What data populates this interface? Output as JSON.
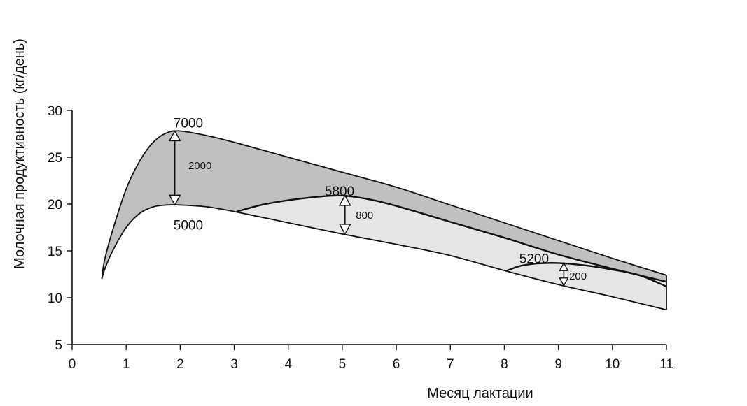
{
  "chart_data": {
    "type": "line",
    "title": "",
    "xlabel": "Месяц лактации",
    "ylabel": "Молочная продуктивность (кг/день)",
    "xlim": [
      0,
      11
    ],
    "ylim": [
      5,
      30
    ],
    "x_ticks": [
      "0",
      "1",
      "2",
      "3",
      "4",
      "5",
      "6",
      "7",
      "8",
      "9",
      "10",
      "11"
    ],
    "y_ticks": [
      "5",
      "10",
      "15",
      "20",
      "25",
      "30"
    ],
    "grid": false,
    "legend": "none",
    "colors": {
      "line": "#111111",
      "fill_between": "#b9b9b9",
      "fill_light": "#e6e6e6",
      "background": "#ffffff"
    },
    "series": [
      {
        "name": "7000",
        "points": [
          [
            0.55,
            12.0
          ],
          [
            0.6,
            14.0
          ],
          [
            0.75,
            17.2
          ],
          [
            1.0,
            21.6
          ],
          [
            1.25,
            24.6
          ],
          [
            1.5,
            26.6
          ],
          [
            1.75,
            27.6
          ],
          [
            2.0,
            27.8
          ],
          [
            2.5,
            27.3
          ],
          [
            3.0,
            26.6
          ],
          [
            4.0,
            25.0
          ],
          [
            5.0,
            23.4
          ],
          [
            6.0,
            21.8
          ],
          [
            7.0,
            19.9
          ],
          [
            8.0,
            18.0
          ],
          [
            9.0,
            16.1
          ],
          [
            10.0,
            14.2
          ],
          [
            11.0,
            12.4
          ]
        ]
      },
      {
        "name": "5000",
        "points": [
          [
            0.55,
            12.0
          ],
          [
            0.6,
            13.0
          ],
          [
            0.75,
            15.0
          ],
          [
            1.0,
            17.5
          ],
          [
            1.25,
            19.0
          ],
          [
            1.5,
            19.7
          ],
          [
            1.75,
            19.9
          ],
          [
            2.0,
            19.9
          ],
          [
            2.5,
            19.7
          ],
          [
            3.0,
            19.2
          ],
          [
            4.0,
            18.0
          ],
          [
            5.0,
            16.8
          ],
          [
            6.0,
            15.7
          ],
          [
            7.0,
            14.5
          ],
          [
            8.0,
            12.9
          ],
          [
            9.0,
            11.4
          ],
          [
            10.0,
            10.1
          ],
          [
            11.0,
            8.7
          ]
        ]
      },
      {
        "name": "5800",
        "points": [
          [
            3.05,
            19.2
          ],
          [
            3.5,
            19.9
          ],
          [
            4.0,
            20.4
          ],
          [
            4.5,
            20.75
          ],
          [
            5.0,
            20.9
          ],
          [
            5.5,
            20.5
          ],
          [
            6.0,
            19.8
          ],
          [
            7.0,
            18.1
          ],
          [
            8.0,
            16.4
          ],
          [
            9.0,
            14.6
          ],
          [
            10.0,
            13.1
          ],
          [
            11.0,
            11.7
          ]
        ]
      },
      {
        "name": "5200",
        "points": [
          [
            8.05,
            12.9
          ],
          [
            8.3,
            13.4
          ],
          [
            8.6,
            13.65
          ],
          [
            9.0,
            13.7
          ],
          [
            9.5,
            13.45
          ],
          [
            10.0,
            13.0
          ],
          [
            10.5,
            12.4
          ],
          [
            11.0,
            11.2
          ]
        ]
      }
    ],
    "annotations": [
      {
        "label": "7000",
        "x": 2.15,
        "y": 28.7,
        "size": "big"
      },
      {
        "label": "5000",
        "x": 2.15,
        "y": 17.8,
        "size": "big"
      },
      {
        "label": "5800",
        "x": 4.95,
        "y": 21.4,
        "size": "big"
      },
      {
        "label": "5200",
        "x": 8.55,
        "y": 14.2,
        "size": "big"
      },
      {
        "label": "2000",
        "x": 2.15,
        "y": 24.1,
        "size": "small"
      },
      {
        "label": "800",
        "x": 5.25,
        "y": 18.8,
        "size": "small"
      },
      {
        "label": "200",
        "x": 9.2,
        "y": 12.3,
        "size": "small"
      }
    ],
    "arrows": [
      {
        "x": 1.9,
        "y_from": 27.8,
        "y_to": 19.9
      },
      {
        "x": 5.05,
        "y_from": 20.9,
        "y_to": 16.8
      },
      {
        "x": 9.1,
        "y_from": 13.7,
        "y_to": 11.3
      }
    ]
  }
}
